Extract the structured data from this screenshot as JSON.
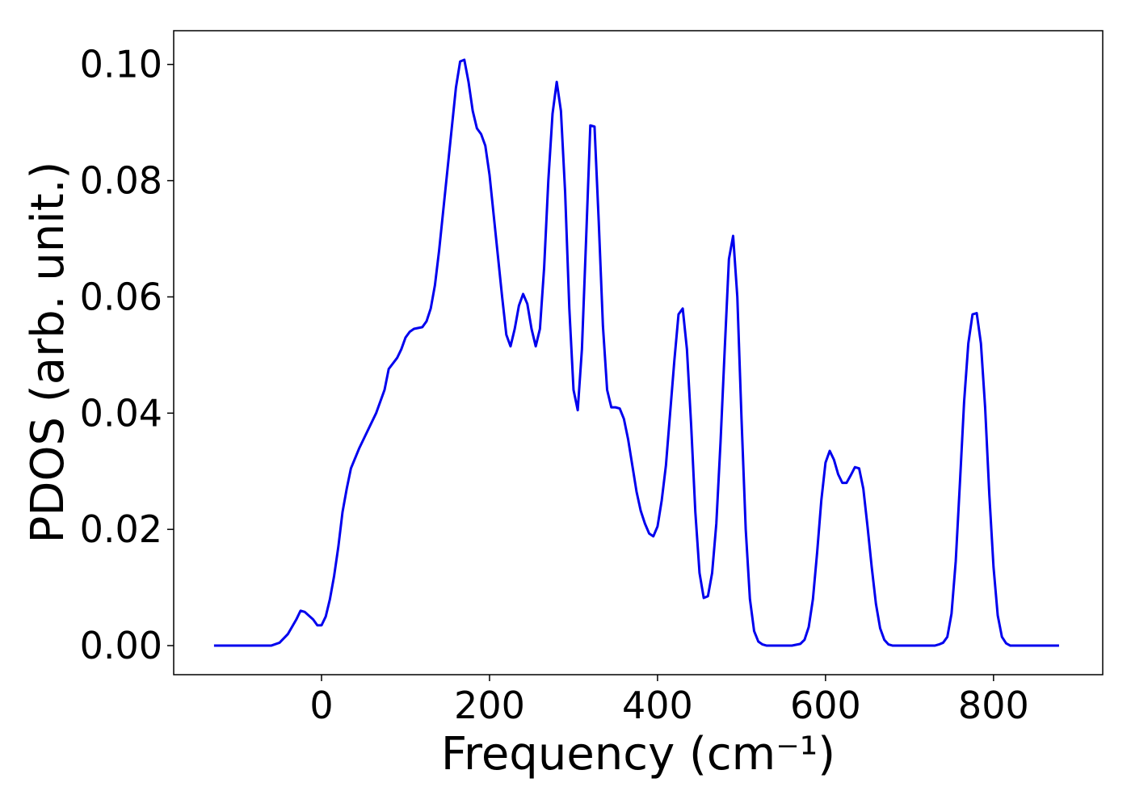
{
  "chart_data": {
    "type": "line",
    "xlabel": "Frequency (cm⁻¹)",
    "ylabel": "PDOS (arb. unit.)",
    "x": [
      -128,
      -60,
      -50,
      -40,
      -30,
      -25,
      -20,
      -10,
      -5,
      0,
      5,
      10,
      15,
      20,
      25,
      30,
      35,
      45,
      55,
      65,
      75,
      80,
      90,
      95,
      100,
      105,
      110,
      120,
      125,
      130,
      135,
      140,
      150,
      155,
      160,
      165,
      170,
      175,
      180,
      185,
      190,
      195,
      200,
      205,
      210,
      215,
      220,
      225,
      230,
      235,
      240,
      245,
      250,
      255,
      260,
      265,
      270,
      275,
      280,
      285,
      290,
      295,
      300,
      305,
      310,
      315,
      320,
      325,
      330,
      335,
      340,
      345,
      350,
      355,
      360,
      365,
      370,
      375,
      380,
      385,
      390,
      395,
      400,
      405,
      410,
      415,
      420,
      425,
      430,
      435,
      440,
      445,
      450,
      455,
      460,
      465,
      470,
      475,
      480,
      485,
      490,
      495,
      500,
      505,
      510,
      515,
      520,
      525,
      530,
      560,
      570,
      575,
      580,
      585,
      590,
      595,
      600,
      605,
      610,
      615,
      620,
      625,
      630,
      635,
      640,
      645,
      650,
      655,
      660,
      665,
      670,
      675,
      680,
      730,
      735,
      740,
      745,
      750,
      755,
      760,
      765,
      770,
      775,
      780,
      785,
      790,
      795,
      800,
      805,
      810,
      815,
      820,
      878
    ],
    "series": [
      {
        "name": "PDOS",
        "color": "#0000ee",
        "values": [
          0,
          0,
          0.0005,
          0.002,
          0.0045,
          0.006,
          0.0058,
          0.0045,
          0.0035,
          0.0035,
          0.005,
          0.008,
          0.012,
          0.017,
          0.023,
          0.027,
          0.0305,
          0.034,
          0.037,
          0.04,
          0.044,
          0.0476,
          0.0495,
          0.051,
          0.053,
          0.054,
          0.0545,
          0.0548,
          0.0558,
          0.058,
          0.062,
          0.068,
          0.082,
          0.089,
          0.096,
          0.1005,
          0.1008,
          0.097,
          0.092,
          0.089,
          0.088,
          0.086,
          0.081,
          0.074,
          0.067,
          0.06,
          0.0535,
          0.0515,
          0.0545,
          0.0585,
          0.0605,
          0.0588,
          0.0545,
          0.0515,
          0.0545,
          0.065,
          0.08,
          0.0915,
          0.097,
          0.092,
          0.078,
          0.058,
          0.044,
          0.0405,
          0.051,
          0.07,
          0.0895,
          0.0893,
          0.073,
          0.055,
          0.044,
          0.041,
          0.041,
          0.0408,
          0.039,
          0.0355,
          0.031,
          0.0265,
          0.0232,
          0.021,
          0.0193,
          0.0188,
          0.0205,
          0.025,
          0.031,
          0.04,
          0.049,
          0.057,
          0.058,
          0.051,
          0.038,
          0.023,
          0.0125,
          0.0082,
          0.0085,
          0.0125,
          0.021,
          0.035,
          0.051,
          0.0665,
          0.0705,
          0.06,
          0.039,
          0.02,
          0.008,
          0.0025,
          0.0007,
          0.0002,
          0,
          0,
          0.0003,
          0.001,
          0.0032,
          0.008,
          0.016,
          0.025,
          0.0315,
          0.0335,
          0.032,
          0.0295,
          0.028,
          0.028,
          0.0293,
          0.0307,
          0.0305,
          0.027,
          0.0205,
          0.0135,
          0.0072,
          0.003,
          0.001,
          0.0002,
          0,
          0,
          0.0002,
          0.0005,
          0.0015,
          0.0055,
          0.0145,
          0.028,
          0.042,
          0.052,
          0.057,
          0.0572,
          0.052,
          0.041,
          0.026,
          0.0135,
          0.0052,
          0.0015,
          0.0004,
          0,
          0
        ]
      }
    ],
    "xlim": [
      -176,
      930
    ],
    "ylim": [
      -0.005,
      0.1058
    ],
    "xticks": [
      0,
      200,
      400,
      600,
      800
    ],
    "yticks": [
      {
        "value": 0,
        "label": "0.00"
      },
      {
        "value": 0.02,
        "label": "0.02"
      },
      {
        "value": 0.04,
        "label": "0.04"
      },
      {
        "value": 0.06,
        "label": "0.06"
      },
      {
        "value": 0.08,
        "label": "0.08"
      },
      {
        "value": 0.1,
        "label": "0.10"
      }
    ],
    "grid": false
  }
}
